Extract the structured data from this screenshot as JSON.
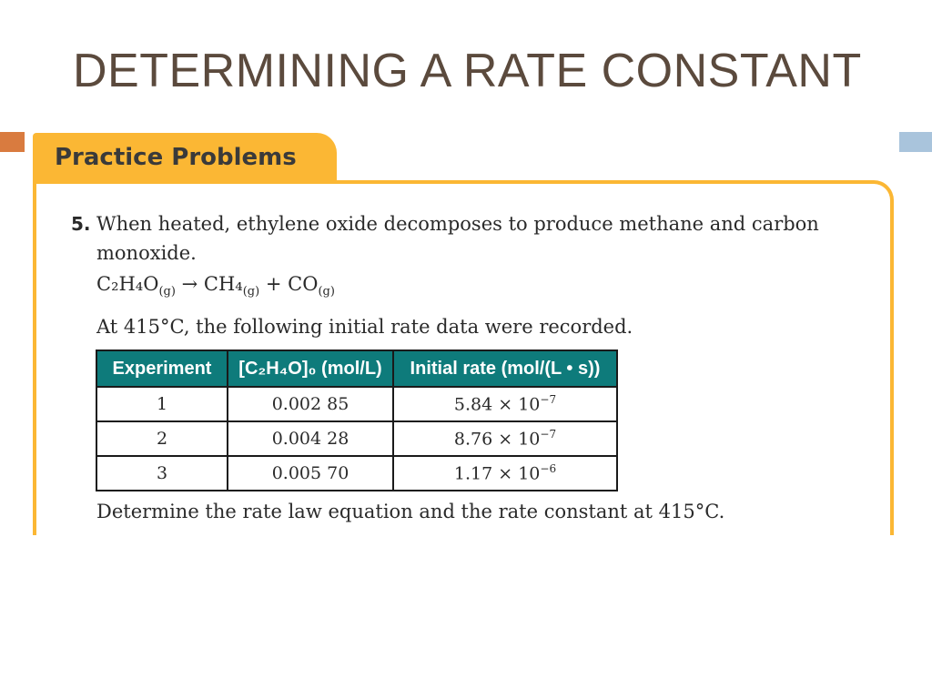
{
  "slide": {
    "title": "DETERMINING A RATE CONSTANT",
    "colors": {
      "title": "#5b4a3d",
      "box_accent": "#fbb734",
      "left_marker": "#d97b3f",
      "right_marker": "#a9c4dc",
      "table_header": "#0e7b7b"
    }
  },
  "box": {
    "label": "Practice Problems"
  },
  "problem": {
    "number": "5.",
    "statement": "When heated, ethylene oxide decomposes to produce methane and carbon monoxide.",
    "equation": {
      "reactant": "C₂H₄O",
      "reactant_state": "(g)",
      "arrow": "→",
      "product1": "CH₄",
      "product1_state": "(g)",
      "plus": "+",
      "product2": "CO",
      "product2_state": "(g)"
    },
    "conditions": "At 415°C, the following initial rate data were recorded.",
    "table": {
      "headers": [
        "Experiment",
        "[C₂H₄O]₀ (mol/L)",
        "Initial rate (mol/(L • s))"
      ],
      "rows": [
        {
          "experiment": "1",
          "concentration": "0.002 85",
          "rate_mantissa": "5.84 × 10",
          "rate_exponent": "−7"
        },
        {
          "experiment": "2",
          "concentration": "0.004 28",
          "rate_mantissa": "8.76 × 10",
          "rate_exponent": "−7"
        },
        {
          "experiment": "3",
          "concentration": "0.005 70",
          "rate_mantissa": "1.17 × 10",
          "rate_exponent": "−6"
        }
      ]
    },
    "question": "Determine the rate law equation and the rate constant at 415°C."
  }
}
